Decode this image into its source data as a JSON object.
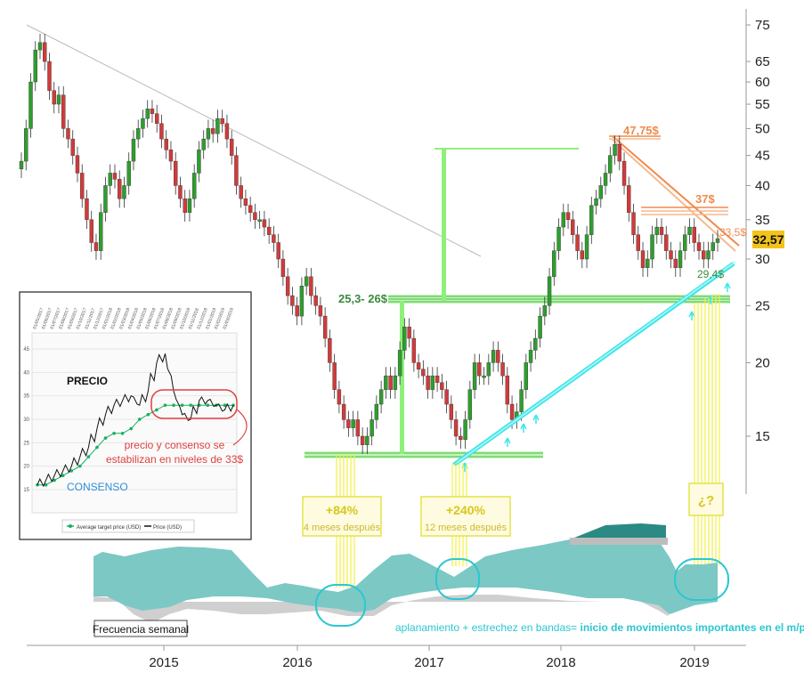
{
  "chart_data": [
    {
      "type": "candlestick",
      "x_ticks": [
        "2015",
        "2016",
        "2017",
        "2018",
        "2019"
      ],
      "y_scale": "log",
      "y_ticks": [
        "15",
        "20",
        "25",
        "30",
        "35",
        "40",
        "45",
        "50",
        "55",
        "60",
        "65",
        "75"
      ],
      "ylim": [
        12,
        78
      ],
      "last_price_label": "32,57",
      "colors": {
        "up": "#2e9e2e",
        "down": "#d23a3a",
        "trend_cyan": "#3fe6ea",
        "fib_green": "#8ef07a",
        "resist_orange": "#f08a4b",
        "yellow_lines": "#f2f040"
      },
      "series": [
        {
          "values": [
            44,
            50,
            60,
            68,
            70,
            65,
            58,
            55,
            57,
            50,
            48,
            45,
            42,
            38,
            35,
            32,
            31,
            36,
            40,
            42,
            41,
            38,
            40,
            44,
            48,
            50,
            52,
            54,
            53,
            51,
            48,
            46,
            44,
            40,
            38,
            36,
            38,
            42,
            46,
            48,
            50,
            49,
            52,
            51,
            48,
            45,
            40,
            38,
            37,
            36,
            35,
            35,
            34,
            33,
            32,
            30,
            28,
            26,
            25,
            24,
            27,
            28,
            26,
            25,
            24,
            22,
            20,
            18,
            17,
            16,
            15.5,
            16,
            15,
            14.5,
            15,
            16,
            17,
            18,
            19,
            18,
            19,
            21,
            23,
            22,
            20,
            19.5,
            19,
            18,
            19,
            18.5,
            18,
            17,
            16,
            15,
            14.8,
            16,
            18,
            20,
            19,
            19,
            20,
            21,
            20,
            19,
            17,
            16,
            16.5,
            18,
            20,
            21,
            22,
            24,
            25,
            28,
            31,
            34,
            36,
            35,
            33,
            31,
            30,
            33,
            37,
            38,
            40,
            42,
            45,
            47,
            44,
            40,
            36,
            33,
            31,
            29,
            30,
            33,
            34,
            33,
            31,
            30,
            29,
            31,
            33,
            34,
            32,
            31,
            30,
            31,
            32,
            32.5
          ]
        }
      ],
      "annotations": {
        "r1": "47,75$",
        "r2": "37$",
        "r3": "33,5$",
        "s1": "29,4$",
        "s2": "25,3- 26$",
        "pct1": "+84%",
        "pct1_sub": "4 meses después",
        "pct2": "+240%",
        "pct2_sub": "12 meses después",
        "q": "¿?",
        "freq": "Frecuencia semanal",
        "note_a": "aplanamiento + estrechez en bandas= ",
        "note_b": "inicio de movimientos importantes en el m/p"
      }
    },
    {
      "type": "line",
      "series": [
        {
          "name": "Average target price (USD)",
          "values": [
            16,
            16,
            17,
            18,
            19,
            20,
            22,
            24,
            26,
            27,
            27,
            28,
            30,
            31,
            32,
            33,
            33,
            33,
            33,
            33,
            33,
            33,
            33,
            33
          ]
        },
        {
          "name": "Price (USD)",
          "values": [
            16,
            17,
            18,
            19,
            20,
            22,
            24,
            28,
            31,
            33,
            34,
            35,
            33,
            36,
            42,
            44,
            36,
            31,
            30,
            34,
            34,
            33,
            32,
            33
          ]
        }
      ],
      "labels": {
        "precio": "PRECIO",
        "consenso": "CONSENSO",
        "note": "precio y consenso se estabilizan en niveles de 33$"
      },
      "x_ticks": [
        "01/05/2017",
        "01/06/2017",
        "01/07/2017",
        "01/08/2017",
        "01/09/2017",
        "01/10/2017",
        "01/11/2017",
        "01/12/2017",
        "01/01/2018",
        "01/02/2018",
        "01/03/2018",
        "01/04/2018",
        "01/05/2018",
        "01/06/2018",
        "01/07/2018",
        "01/08/2018",
        "01/09/2018",
        "01/10/2018",
        "01/11/2018",
        "01/12/2018",
        "01/01/2019",
        "01/02/2019",
        "01/03/2019"
      ],
      "y_ticks": [
        "45",
        "40",
        "35",
        "30",
        "25",
        "20",
        "15"
      ]
    }
  ]
}
